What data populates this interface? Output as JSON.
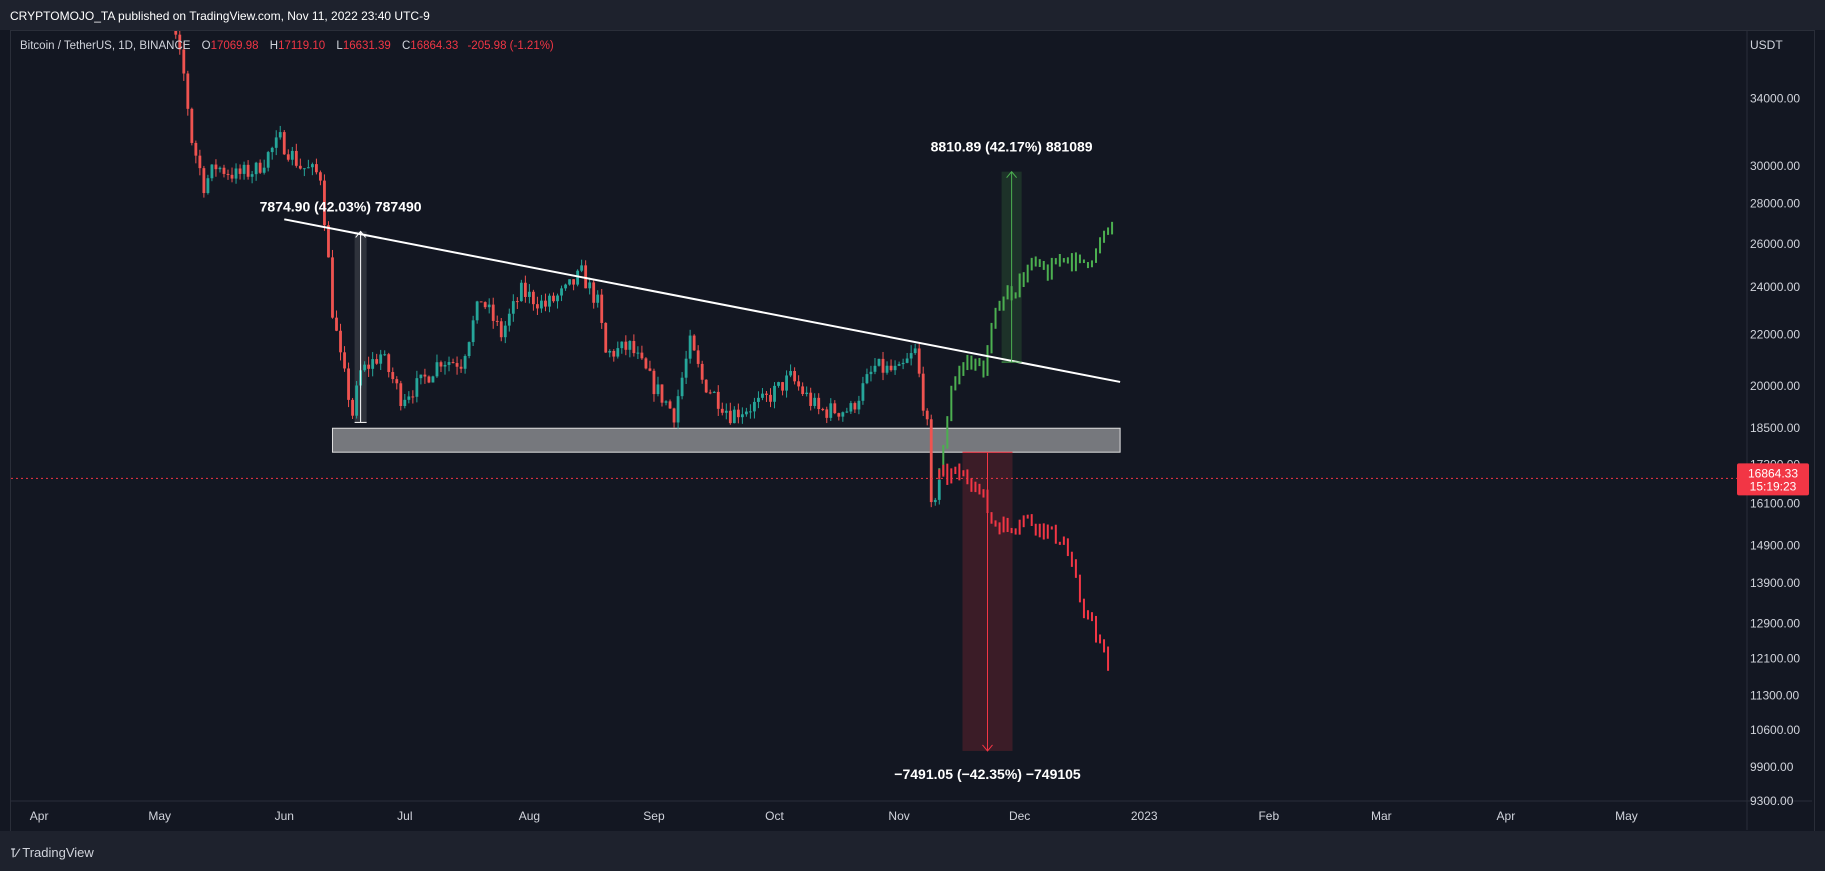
{
  "header": {
    "publisher": "CRYPTOMOJO_TA published on TradingView.com, Nov 11, 2022 23:40 UTC-9"
  },
  "legend": {
    "symbol": "Bitcoin / TetherUS, 1D, BINANCE",
    "open_label": "O",
    "open": "17069.98",
    "high_label": "H",
    "high": "17119.10",
    "low_label": "L",
    "low": "16631.39",
    "close_label": "C",
    "close": "16864.33",
    "change": "-205.98 (-1.21%)"
  },
  "footer": {
    "brand": "TradingView"
  },
  "chart_data": {
    "type": "candlestick",
    "currency": "USDT",
    "y_scale": "log",
    "ylim": [
      9300,
      38500
    ],
    "xlim": [
      "2022-03-25",
      "2023-05-31"
    ],
    "y_ticks": [
      "34000.00",
      "30000.00",
      "28000.00",
      "26000.00",
      "24000.00",
      "22000.00",
      "20000.00",
      "18500.00",
      "17300.00",
      "16100.00",
      "14900.00",
      "13900.00",
      "12900.00",
      "12100.00",
      "11300.00",
      "10600.00",
      "9900.00",
      "9300.00"
    ],
    "x_ticks": [
      {
        "label": "Apr",
        "date": "2022-04-01"
      },
      {
        "label": "May",
        "date": "2022-05-01"
      },
      {
        "label": "Jun",
        "date": "2022-06-01"
      },
      {
        "label": "Jul",
        "date": "2022-07-01"
      },
      {
        "label": "Aug",
        "date": "2022-08-01"
      },
      {
        "label": "Sep",
        "date": "2022-09-01"
      },
      {
        "label": "Oct",
        "date": "2022-10-01"
      },
      {
        "label": "Nov",
        "date": "2022-11-01"
      },
      {
        "label": "Dec",
        "date": "2022-12-01"
      },
      {
        "label": "2023",
        "date": "2023-01-01"
      },
      {
        "label": "Feb",
        "date": "2023-02-01"
      },
      {
        "label": "Mar",
        "date": "2023-03-01"
      },
      {
        "label": "Apr",
        "date": "2023-04-01"
      },
      {
        "label": "May",
        "date": "2023-05-01"
      }
    ],
    "last_price": {
      "value": 16864.33,
      "label": "16864.33",
      "countdown": "15:19:23",
      "color": "#f23645"
    },
    "colors": {
      "up": "#26a69a",
      "down": "#ef5350",
      "proj_up": "#4caf50",
      "proj_down": "#f23645"
    },
    "price_path": [
      [
        "2022-04-28",
        39500
      ],
      [
        "2022-05-04",
        39000
      ],
      [
        "2022-05-07",
        35500
      ],
      [
        "2022-05-09",
        31500
      ],
      [
        "2022-05-12",
        29000
      ],
      [
        "2022-05-15",
        30000
      ],
      [
        "2022-05-20",
        29500
      ],
      [
        "2022-05-25",
        29800
      ],
      [
        "2022-05-31",
        31500
      ],
      [
        "2022-06-05",
        30000
      ],
      [
        "2022-06-10",
        29500
      ],
      [
        "2022-06-13",
        23000
      ],
      [
        "2022-06-15",
        21000
      ],
      [
        "2022-06-18",
        19000
      ],
      [
        "2022-06-20",
        20500
      ],
      [
        "2022-06-25",
        21200
      ],
      [
        "2022-06-30",
        19600
      ],
      [
        "2022-07-05",
        20100
      ],
      [
        "2022-07-10",
        21000
      ],
      [
        "2022-07-15",
        20900
      ],
      [
        "2022-07-20",
        23500
      ],
      [
        "2022-07-25",
        22000
      ],
      [
        "2022-07-30",
        23800
      ],
      [
        "2022-08-05",
        23200
      ],
      [
        "2022-08-10",
        23800
      ],
      [
        "2022-08-14",
        24600
      ],
      [
        "2022-08-18",
        23300
      ],
      [
        "2022-08-20",
        21200
      ],
      [
        "2022-08-26",
        21500
      ],
      [
        "2022-09-01",
        20000
      ],
      [
        "2022-09-06",
        19000
      ],
      [
        "2022-09-10",
        21600
      ],
      [
        "2022-09-13",
        20200
      ],
      [
        "2022-09-20",
        19000
      ],
      [
        "2022-09-28",
        19400
      ],
      [
        "2022-10-05",
        20300
      ],
      [
        "2022-10-12",
        19100
      ],
      [
        "2022-10-20",
        19150
      ],
      [
        "2022-10-26",
        20700
      ],
      [
        "2022-11-01",
        20500
      ],
      [
        "2022-11-05",
        21300
      ],
      [
        "2022-11-08",
        18500
      ],
      [
        "2022-11-09",
        15900
      ],
      [
        "2022-11-11",
        16864
      ]
    ],
    "projection_up": [
      [
        "2022-11-11",
        16900
      ],
      [
        "2022-11-14",
        20000
      ],
      [
        "2022-11-18",
        21000
      ],
      [
        "2022-11-22",
        20600
      ],
      [
        "2022-11-26",
        23500
      ],
      [
        "2022-11-30",
        24000
      ],
      [
        "2022-12-04",
        25000
      ],
      [
        "2022-12-08",
        24600
      ],
      [
        "2022-12-12",
        25500
      ],
      [
        "2022-12-16",
        25000
      ],
      [
        "2022-12-20",
        25600
      ],
      [
        "2022-12-24",
        27000
      ]
    ],
    "projection_down": [
      [
        "2022-11-11",
        16900
      ],
      [
        "2022-11-15",
        17000
      ],
      [
        "2022-11-20",
        16800
      ],
      [
        "2022-11-24",
        15600
      ],
      [
        "2022-11-28",
        15400
      ],
      [
        "2022-12-02",
        15700
      ],
      [
        "2022-12-08",
        15300
      ],
      [
        "2022-12-12",
        15000
      ],
      [
        "2022-12-16",
        13500
      ],
      [
        "2022-12-20",
        12600
      ],
      [
        "2022-12-23",
        12000
      ]
    ],
    "trendline": {
      "from": [
        "2022-06-01",
        27200
      ],
      "to": [
        "2022-12-26",
        20150
      ],
      "color": "#ffffff"
    },
    "support_zone": {
      "from_date": "2022-06-13",
      "to_date": "2022-12-26",
      "low": 17700,
      "high": 18500
    },
    "measurements": [
      {
        "label": "7874.90 (42.03%) 787490",
        "date": "2022-06-20",
        "from": 18700,
        "to": 26600,
        "color": "#ffffff"
      },
      {
        "label": "8810.89 (42.17%) 881089",
        "date": "2022-11-29",
        "from": 20900,
        "to": 29700,
        "color": "#4caf50"
      },
      {
        "label": "−7491.05 (−42.35%) −749105",
        "date": "2022-11-23",
        "from": 17700,
        "to": 10200,
        "color": "#f23645"
      }
    ]
  }
}
